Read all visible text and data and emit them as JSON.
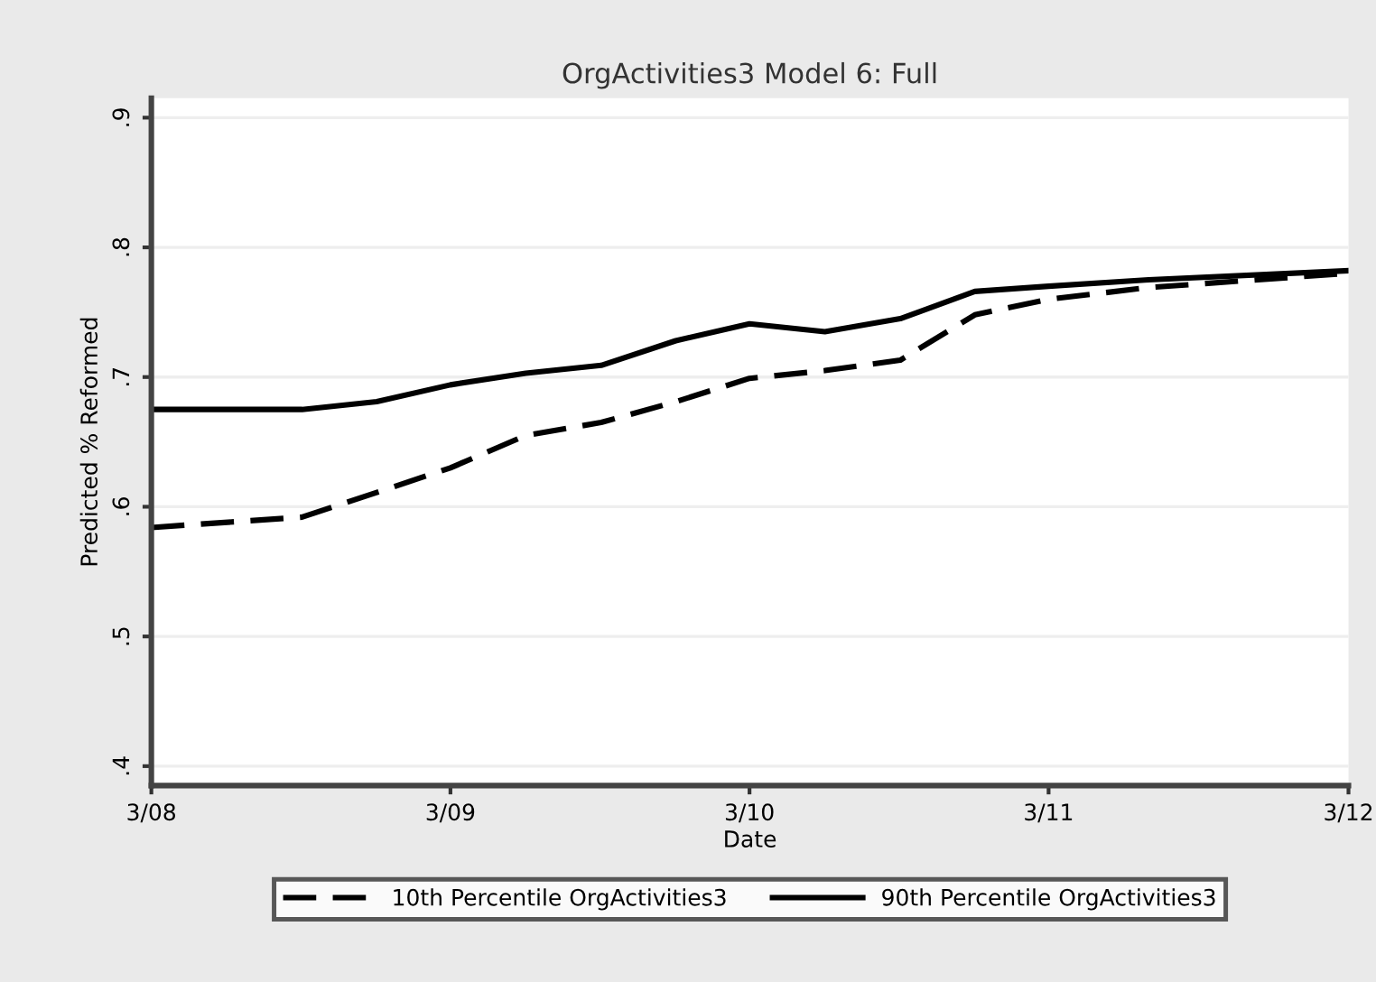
{
  "chart_data": {
    "type": "line",
    "title": "OrgActivities3 Model 6: Full",
    "xlabel": "Date",
    "ylabel": "Predicted % Reformed",
    "x": [
      "2008-03",
      "2008-09",
      "2008-12",
      "2009-03",
      "2009-06",
      "2009-09",
      "2009-12",
      "2010-03",
      "2010-06",
      "2010-09",
      "2010-12",
      "2011-03",
      "2011-07",
      "2012-03"
    ],
    "series": [
      {
        "name": "10th Percentile OrgActivities3",
        "color": "#000000",
        "line_style": "dashed",
        "values": [
          0.584,
          0.592,
          0.611,
          0.63,
          0.655,
          0.665,
          0.681,
          0.699,
          0.705,
          0.713,
          0.748,
          0.76,
          0.769,
          0.78
        ]
      },
      {
        "name": "90th Percentile OrgActivities3",
        "color": "#000000",
        "line_style": "solid",
        "values": [
          0.675,
          0.675,
          0.681,
          0.694,
          0.703,
          0.709,
          0.728,
          0.741,
          0.735,
          0.745,
          0.766,
          0.77,
          0.775,
          0.782
        ]
      }
    ],
    "xlim": [
      "2008-03",
      "2012-03"
    ],
    "xticks": [
      {
        "value": "2008-03",
        "label": "3/08"
      },
      {
        "value": "2009-03",
        "label": "3/09"
      },
      {
        "value": "2010-03",
        "label": "3/10"
      },
      {
        "value": "2011-03",
        "label": "3/11"
      },
      {
        "value": "2012-03",
        "label": "3/12"
      }
    ],
    "ylim": [
      0.385,
      0.915
    ],
    "yticks": [
      {
        "value": 0.4,
        "label": ".4"
      },
      {
        "value": 0.5,
        "label": ".5"
      },
      {
        "value": 0.6,
        "label": ".6"
      },
      {
        "value": 0.7,
        "label": ".7"
      },
      {
        "value": 0.8,
        "label": ".8"
      },
      {
        "value": 0.9,
        "label": ".9"
      }
    ],
    "grid": "y",
    "legend": "bottom",
    "marker": "none"
  }
}
